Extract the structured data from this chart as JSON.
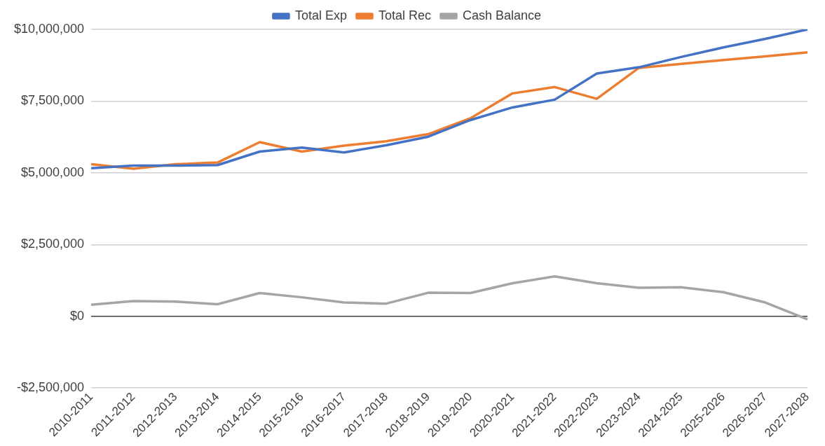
{
  "chart_data": {
    "type": "line",
    "categories": [
      "2010-2011",
      "2011-2012",
      "2012-2013",
      "2013-2014",
      "2014-2015",
      "2015-2016",
      "2016-2017",
      "2017-2018",
      "2018-2019",
      "2019-2020",
      "2020-2021",
      "2021-2022",
      "2022-2023",
      "2023-2024",
      "2024-2025",
      "2025-2026",
      "2026-2027",
      "2027-2028"
    ],
    "series": [
      {
        "name": "Total Exp",
        "color": "#4472c4",
        "values": [
          5160000,
          5250000,
          5250000,
          5270000,
          5740000,
          5880000,
          5710000,
          5960000,
          6260000,
          6840000,
          7280000,
          7550000,
          8460000,
          8680000,
          9040000,
          9370000,
          9670000,
          10000000
        ]
      },
      {
        "name": "Total Rec",
        "color": "#ed7d31",
        "values": [
          5300000,
          5140000,
          5300000,
          5360000,
          6070000,
          5740000,
          5950000,
          6100000,
          6350000,
          6900000,
          7770000,
          7990000,
          7580000,
          8660000,
          8800000,
          8930000,
          9060000,
          9200000
        ]
      },
      {
        "name": "Cash Balance",
        "color": "#a5a5a5",
        "values": [
          400000,
          530000,
          510000,
          420000,
          810000,
          660000,
          480000,
          440000,
          820000,
          810000,
          1150000,
          1390000,
          1150000,
          990000,
          1010000,
          840000,
          480000,
          -110000
        ]
      }
    ],
    "ylim": [
      -2500000,
      10000000
    ],
    "yticks": [
      {
        "value": -2500000,
        "label": "-$2,500,000"
      },
      {
        "value": 0,
        "label": "$0"
      },
      {
        "value": 2500000,
        "label": "$2,500,000"
      },
      {
        "value": 5000000,
        "label": "$5,000,000"
      },
      {
        "value": 7500000,
        "label": "$7,500,000"
      },
      {
        "value": 10000000,
        "label": "$10,000,000"
      }
    ],
    "grid": "y",
    "legend": "top",
    "marker": "none",
    "line_style": "solid"
  }
}
